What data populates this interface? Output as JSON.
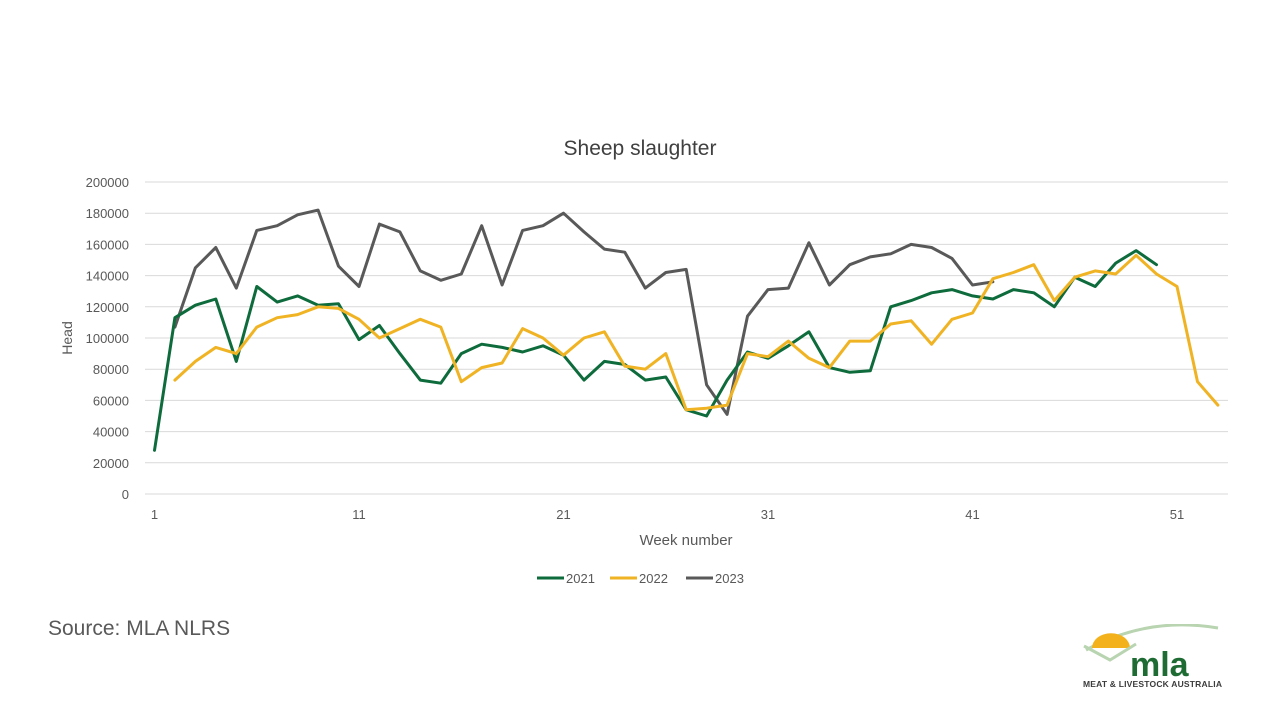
{
  "chart_data": {
    "type": "line",
    "title": "Sheep slaughter",
    "xlabel": "Week number",
    "ylabel": "Head",
    "xlim": [
      1,
      53
    ],
    "ylim": [
      0,
      200000
    ],
    "x_ticks": [
      1,
      11,
      21,
      31,
      41,
      51
    ],
    "y_ticks": [
      0,
      20000,
      40000,
      60000,
      80000,
      100000,
      120000,
      140000,
      160000,
      180000,
      200000
    ],
    "y_tick_labels": [
      "0",
      "20000",
      "40000",
      "60000",
      "80000",
      "100000",
      "120000",
      "140000",
      "160000",
      "180000",
      "200000"
    ],
    "grid": "horizontal",
    "legend_position": "bottom",
    "series": [
      {
        "name": "2021",
        "color": "#0e6b3c",
        "start_week": 1,
        "values": [
          28000,
          113000,
          121000,
          125000,
          85000,
          133000,
          123000,
          127000,
          121000,
          122000,
          99000,
          108000,
          90000,
          73000,
          71000,
          90000,
          96000,
          94000,
          91000,
          95000,
          89000,
          73000,
          85000,
          83000,
          73000,
          75000,
          54000,
          50000,
          73000,
          91000,
          87000,
          95000,
          104000,
          81000,
          78000,
          79000,
          120000,
          124000,
          129000,
          131000,
          127000,
          125000,
          131000,
          129000,
          120000,
          139000,
          133000,
          148000,
          156000,
          147000
        ]
      },
      {
        "name": "2022",
        "color": "#f0b323",
        "start_week": 2,
        "values": [
          73000,
          85000,
          94000,
          90000,
          107000,
          113000,
          115000,
          120000,
          119000,
          112000,
          100000,
          106000,
          112000,
          107000,
          72000,
          81000,
          84000,
          106000,
          100000,
          89000,
          100000,
          104000,
          82000,
          80000,
          90000,
          54000,
          55000,
          57000,
          90000,
          88000,
          98000,
          87000,
          81000,
          98000,
          98000,
          109000,
          111000,
          96000,
          112000,
          116000,
          138000,
          142000,
          147000,
          124000,
          139000,
          143000,
          141000,
          153000,
          141000,
          133000,
          72000,
          57000
        ]
      },
      {
        "name": "2023",
        "color": "#595959",
        "start_week": 2,
        "values": [
          107000,
          145000,
          158000,
          132000,
          169000,
          172000,
          179000,
          182000,
          146000,
          133000,
          173000,
          168000,
          143000,
          137000,
          141000,
          172000,
          134000,
          169000,
          172000,
          180000,
          168000,
          157000,
          155000,
          132000,
          142000,
          144000,
          70000,
          51000,
          114000,
          131000,
          132000,
          161000,
          134000,
          147000,
          152000,
          154000,
          160000,
          158000,
          151000,
          134000,
          136000
        ]
      }
    ]
  },
  "source": "Source: MLA NLRS",
  "logo": {
    "text": "mla",
    "tagline": "MEAT & LIVESTOCK AUSTRALIA",
    "colors": {
      "green": "#1e6b33",
      "yellow": "#f3b21b",
      "light_green": "#b8d4b0"
    }
  }
}
